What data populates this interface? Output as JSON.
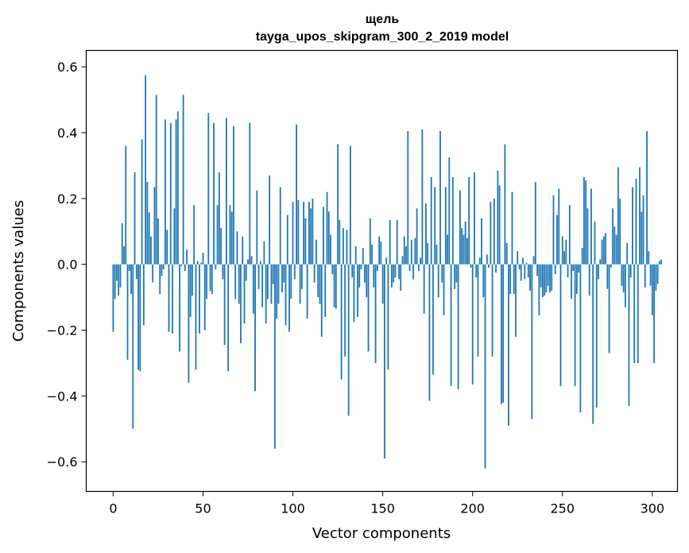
{
  "chart_data": {
    "type": "bar",
    "title_lines": [
      "щель",
      "tayga_upos_skipgram_300_2_2019 model"
    ],
    "xlabel": "Vector components",
    "ylabel": "Components values",
    "xlim": [
      -15,
      314
    ],
    "ylim": [
      -0.69,
      0.65
    ],
    "xticks": [
      0,
      50,
      100,
      150,
      200,
      250,
      300
    ],
    "xtick_labels": [
      "0",
      "50",
      "100",
      "150",
      "200",
      "250",
      "300"
    ],
    "yticks": [
      -0.6,
      -0.4,
      -0.2,
      0.0,
      0.2,
      0.4,
      0.6
    ],
    "ytick_labels": [
      "−0.6",
      "−0.4",
      "−0.2",
      "0.0",
      "0.2",
      "0.4",
      "0.6"
    ],
    "bar_color": "#1f77b4",
    "values": [
      -0.205,
      -0.105,
      -0.05,
      -0.095,
      -0.07,
      0.125,
      0.055,
      0.36,
      -0.29,
      -0.02,
      -0.09,
      -0.5,
      0.28,
      -0.045,
      -0.32,
      -0.325,
      0.38,
      -0.185,
      0.575,
      0.25,
      0.158,
      0.085,
      -0.055,
      0.235,
      0.515,
      0.14,
      -0.09,
      -0.035,
      -0.015,
      0.44,
      0.105,
      -0.205,
      0.43,
      -0.21,
      0.17,
      0.44,
      0.465,
      -0.265,
      -0.005,
      0.515,
      -0.02,
      0.045,
      -0.36,
      -0.16,
      -0.095,
      0.18,
      -0.32,
      0.01,
      -0.21,
      0.005,
      0.035,
      -0.2,
      -0.105,
      0.46,
      -0.08,
      -0.09,
      0.43,
      -0.015,
      0.18,
      0.28,
      0.11,
      -0.045,
      -0.245,
      0.445,
      -0.325,
      0.18,
      0.16,
      0.42,
      -0.105,
      0.1,
      -0.12,
      -0.24,
      0.085,
      -0.18,
      -0.05,
      0.015,
      0.43,
      0.025,
      -0.15,
      -0.385,
      0.225,
      -0.075,
      0.01,
      -0.13,
      0.07,
      -0.18,
      -0.105,
      0.27,
      -0.12,
      -0.06,
      -0.56,
      -0.165,
      -0.12,
      0.235,
      -0.085,
      -0.055,
      -0.185,
      0.15,
      -0.205,
      -0.105,
      0.19,
      -0.045,
      0.425,
      0.195,
      -0.12,
      -0.075,
      0.19,
      0.14,
      -0.165,
      0.19,
      0.17,
      0.2,
      -0.055,
      0.075,
      -0.1,
      -0.12,
      -0.22,
      0.175,
      -0.16,
      0.22,
      0.16,
      0.09,
      -0.03,
      -0.13,
      -0.135,
      0.365,
      0.135,
      -0.35,
      0.11,
      -0.28,
      0.105,
      -0.46,
      0.36,
      -0.04,
      -0.175,
      0.055,
      -0.16,
      -0.07,
      -0.015,
      0.05,
      -0.055,
      -0.1,
      -0.265,
      0.14,
      0.06,
      -0.07,
      -0.3,
      -0.02,
      0.085,
      0.07,
      -0.12,
      -0.59,
      0.02,
      -0.32,
      0.135,
      -0.07,
      -0.055,
      -0.04,
      0.135,
      -0.045,
      -0.08,
      0.025,
      0.085,
      0.055,
      0.405,
      -0.02,
      0.075,
      -0.045,
      0.08,
      0.17,
      -0.02,
      0.02,
      0.41,
      -0.15,
      0.185,
      0.065,
      -0.415,
      0.265,
      -0.335,
      0.235,
      0.06,
      -0.1,
      0.405,
      -0.055,
      -0.155,
      0.235,
      0.09,
      0.325,
      -0.37,
      0.265,
      -0.075,
      -0.055,
      -0.38,
      0.225,
      0.11,
      0.09,
      0.13,
      0.08,
      0.265,
      -0.01,
      -0.365,
      0.28,
      -0.04,
      -0.28,
      0.02,
      0.14,
      -0.1,
      -0.62,
      0.03,
      -0.01,
      0.19,
      -0.28,
      0.2,
      -0.025,
      0.285,
      0.24,
      -0.425,
      -0.42,
      0.365,
      0.065,
      -0.49,
      -0.09,
      0.22,
      -0.09,
      -0.22,
      0.04,
      -0.015,
      -0.05,
      0.02,
      -0.045,
      0.005,
      -0.04,
      -0.08,
      -0.47,
      0.025,
      0.25,
      -0.035,
      -0.155,
      -0.07,
      -0.1,
      -0.095,
      -0.085,
      -0.065,
      -0.085,
      -0.08,
      0.21,
      -0.03,
      0.15,
      0.23,
      -0.37,
      0.085,
      0.04,
      0.075,
      -0.04,
      0.18,
      -0.105,
      -0.02,
      -0.37,
      -0.09,
      -0.025,
      -0.45,
      0.05,
      0.265,
      0.255,
      0.17,
      -0.095,
      0.23,
      -0.485,
      0.13,
      -0.435,
      -0.045,
      0.015,
      0.075,
      0.085,
      0.095,
      -0.075,
      -0.27,
      -0.01,
      0.17,
      0.115,
      0.09,
      0.295,
      0.2,
      -0.065,
      -0.085,
      -0.13,
      0.065,
      -0.43,
      -0.04,
      0.235,
      -0.3,
      0.26,
      -0.3,
      0.295,
      0.16,
      0.21,
      -0.07,
      0.405,
      0.04,
      -0.065,
      -0.155,
      -0.3,
      -0.08,
      -0.06,
      0.01,
      0.015
    ]
  }
}
